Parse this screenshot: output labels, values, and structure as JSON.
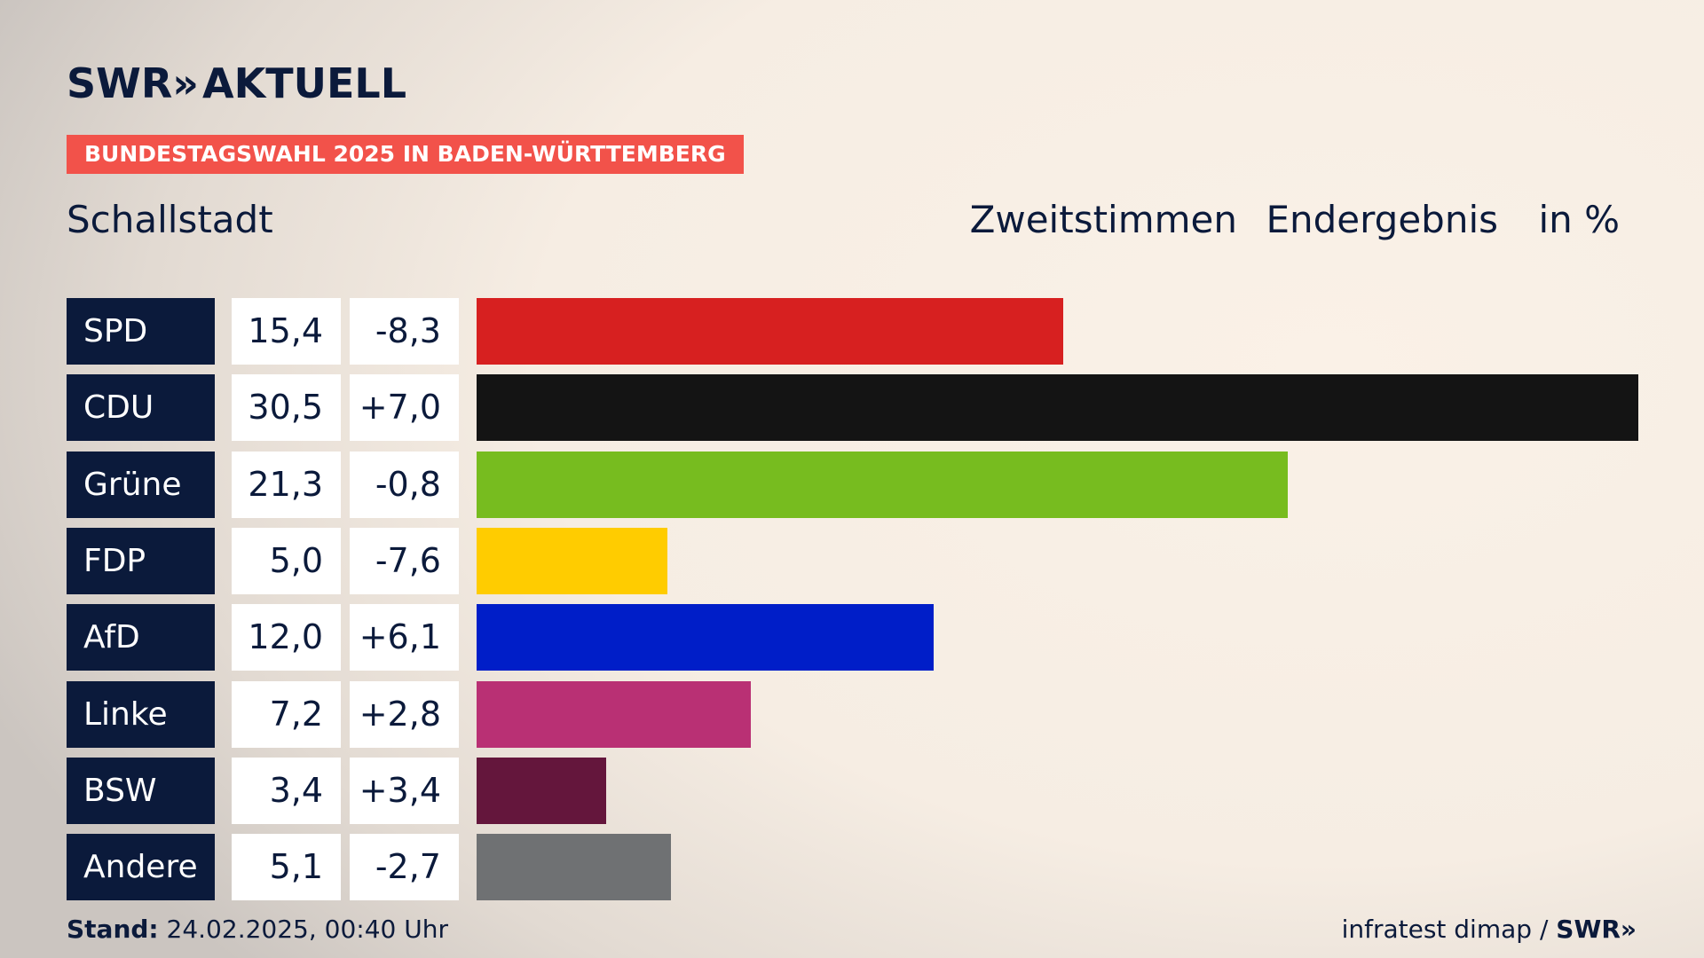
{
  "brand": {
    "logo_main": "SWR",
    "logo_chevrons": "»",
    "logo_sub": "AKTUELL"
  },
  "banner": "BUNDESTAGSWAHL 2025 IN BADEN-WÜRTTEMBERG",
  "place": "Schallstadt",
  "header": {
    "vote_type": "Zweitstimmen",
    "status": "Endergebnis",
    "unit": "in %"
  },
  "footer": {
    "stand_label": "Stand:",
    "stand_value": "24.02.2025, 00:40 Uhr",
    "source": "infratest dimap /",
    "source_brand": "SWR»"
  },
  "chart_data": {
    "type": "bar",
    "orientation": "horizontal",
    "categories": [
      "SPD",
      "CDU",
      "Grüne",
      "FDP",
      "AfD",
      "Linke",
      "BSW",
      "Andere"
    ],
    "values": [
      15.4,
      30.5,
      21.3,
      5.0,
      12.0,
      7.2,
      3.4,
      5.1
    ],
    "value_labels": [
      "15,4",
      "30,5",
      "21,3",
      "5,0",
      "12,0",
      "7,2",
      "3,4",
      "5,1"
    ],
    "change_labels": [
      "-8,3",
      "+7,0",
      "-0,8",
      "-7,6",
      "+6,1",
      "+2,8",
      "+3,4",
      "-2,7"
    ],
    "changes": [
      -8.3,
      7.0,
      -0.8,
      -7.6,
      6.1,
      2.8,
      3.4,
      -2.7
    ],
    "colors": [
      "#d72020",
      "#141414",
      "#77bc1f",
      "#ffcc00",
      "#001ec8",
      "#b93074",
      "#64163c",
      "#6f7173"
    ],
    "xlim": [
      0,
      30.5
    ],
    "grid": false
  }
}
